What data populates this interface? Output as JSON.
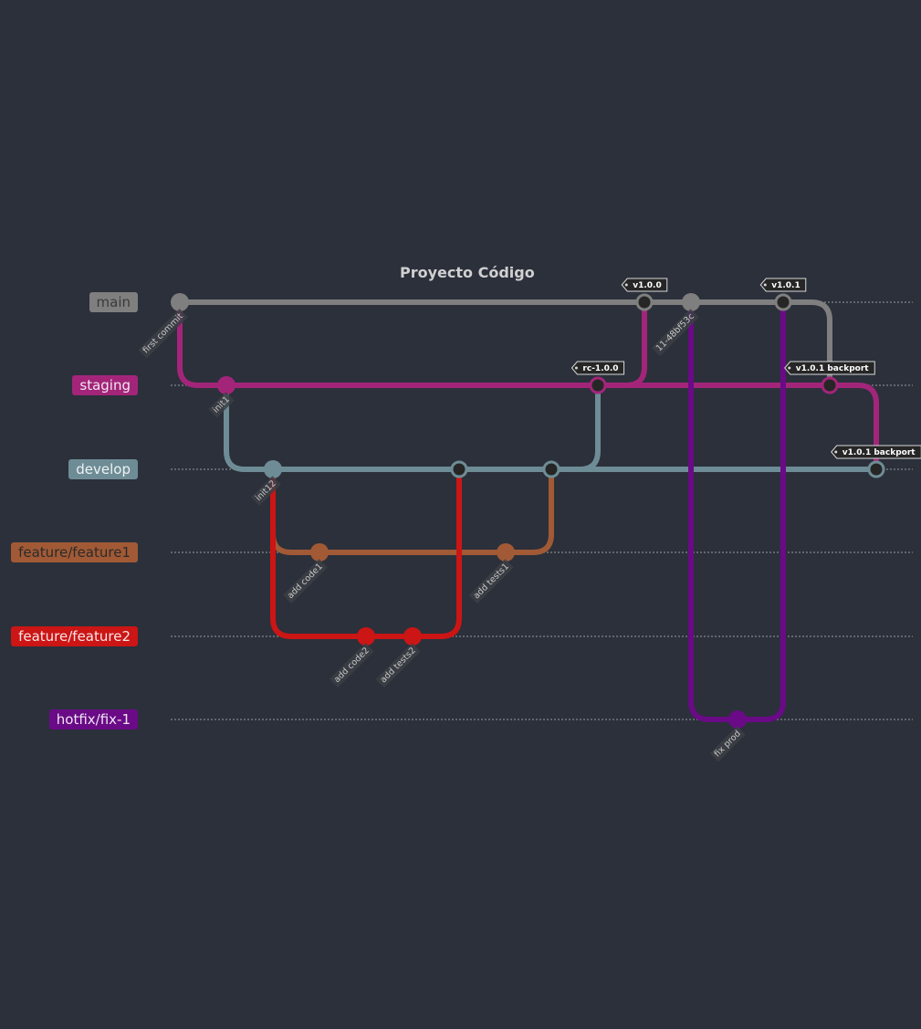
{
  "title": "Proyecto Código",
  "branches": [
    {
      "id": "main",
      "label": "main",
      "color": "#7f7f7f",
      "text": "#3a3a3a"
    },
    {
      "id": "staging",
      "label": "staging",
      "color": "#a3257a",
      "text": "#f0e6ee"
    },
    {
      "id": "develop",
      "label": "develop",
      "color": "#6e8c95",
      "text": "#eef2f3"
    },
    {
      "id": "feature1",
      "label": "feature/feature1",
      "color": "#a15a35",
      "text": "#2b2b2b"
    },
    {
      "id": "feature2",
      "label": "feature/feature2",
      "color": "#cc1515",
      "text": "#f5e6e6"
    },
    {
      "id": "hotfix",
      "label": "hotfix/fix-1",
      "color": "#6a0a86",
      "text": "#eee6f2"
    }
  ],
  "commits": [
    {
      "id": "c0",
      "branch": "main",
      "label": "first commit",
      "merge": false
    },
    {
      "id": "c1",
      "branch": "staging",
      "label": "init1",
      "merge": false
    },
    {
      "id": "c2",
      "branch": "develop",
      "label": "init12",
      "merge": false
    },
    {
      "id": "c3",
      "branch": "feature1",
      "label": "add code1",
      "merge": false
    },
    {
      "id": "c4",
      "branch": "feature2",
      "label": "add code2",
      "merge": false
    },
    {
      "id": "c5",
      "branch": "feature2",
      "label": "add tests2",
      "merge": false
    },
    {
      "id": "c6",
      "branch": "develop",
      "label": "",
      "merge": true
    },
    {
      "id": "c7",
      "branch": "feature1",
      "label": "add tests1",
      "merge": false
    },
    {
      "id": "c8",
      "branch": "develop",
      "label": "",
      "merge": true
    },
    {
      "id": "c9",
      "branch": "staging",
      "label": "",
      "merge": true,
      "tag": "rc-1.0.0"
    },
    {
      "id": "c10",
      "branch": "main",
      "label": "",
      "merge": true,
      "tag": "v1.0.0"
    },
    {
      "id": "c11",
      "branch": "main",
      "label": "11-48bf53c",
      "merge": false
    },
    {
      "id": "c12",
      "branch": "hotfix",
      "label": "fix prod",
      "merge": false
    },
    {
      "id": "c13",
      "branch": "main",
      "label": "",
      "merge": true,
      "tag": "v1.0.1"
    },
    {
      "id": "c14",
      "branch": "staging",
      "label": "",
      "merge": true,
      "tag": "v1.0.1 backport"
    },
    {
      "id": "c15",
      "branch": "develop",
      "label": "",
      "merge": true,
      "tag": "v1.0.1 backport"
    }
  ],
  "edges": [
    {
      "from": "c0",
      "to": "c1"
    },
    {
      "from": "c1",
      "to": "c2"
    },
    {
      "from": "c2",
      "to": "c3"
    },
    {
      "from": "c2",
      "to": "c4"
    },
    {
      "from": "c5",
      "to": "c6"
    },
    {
      "from": "c7",
      "to": "c8"
    },
    {
      "from": "c8",
      "to": "c9"
    },
    {
      "from": "c9",
      "to": "c10"
    },
    {
      "from": "c11",
      "to": "c12"
    },
    {
      "from": "c12",
      "to": "c13"
    },
    {
      "from": "c13",
      "to": "c14"
    },
    {
      "from": "c14",
      "to": "c15"
    }
  ]
}
